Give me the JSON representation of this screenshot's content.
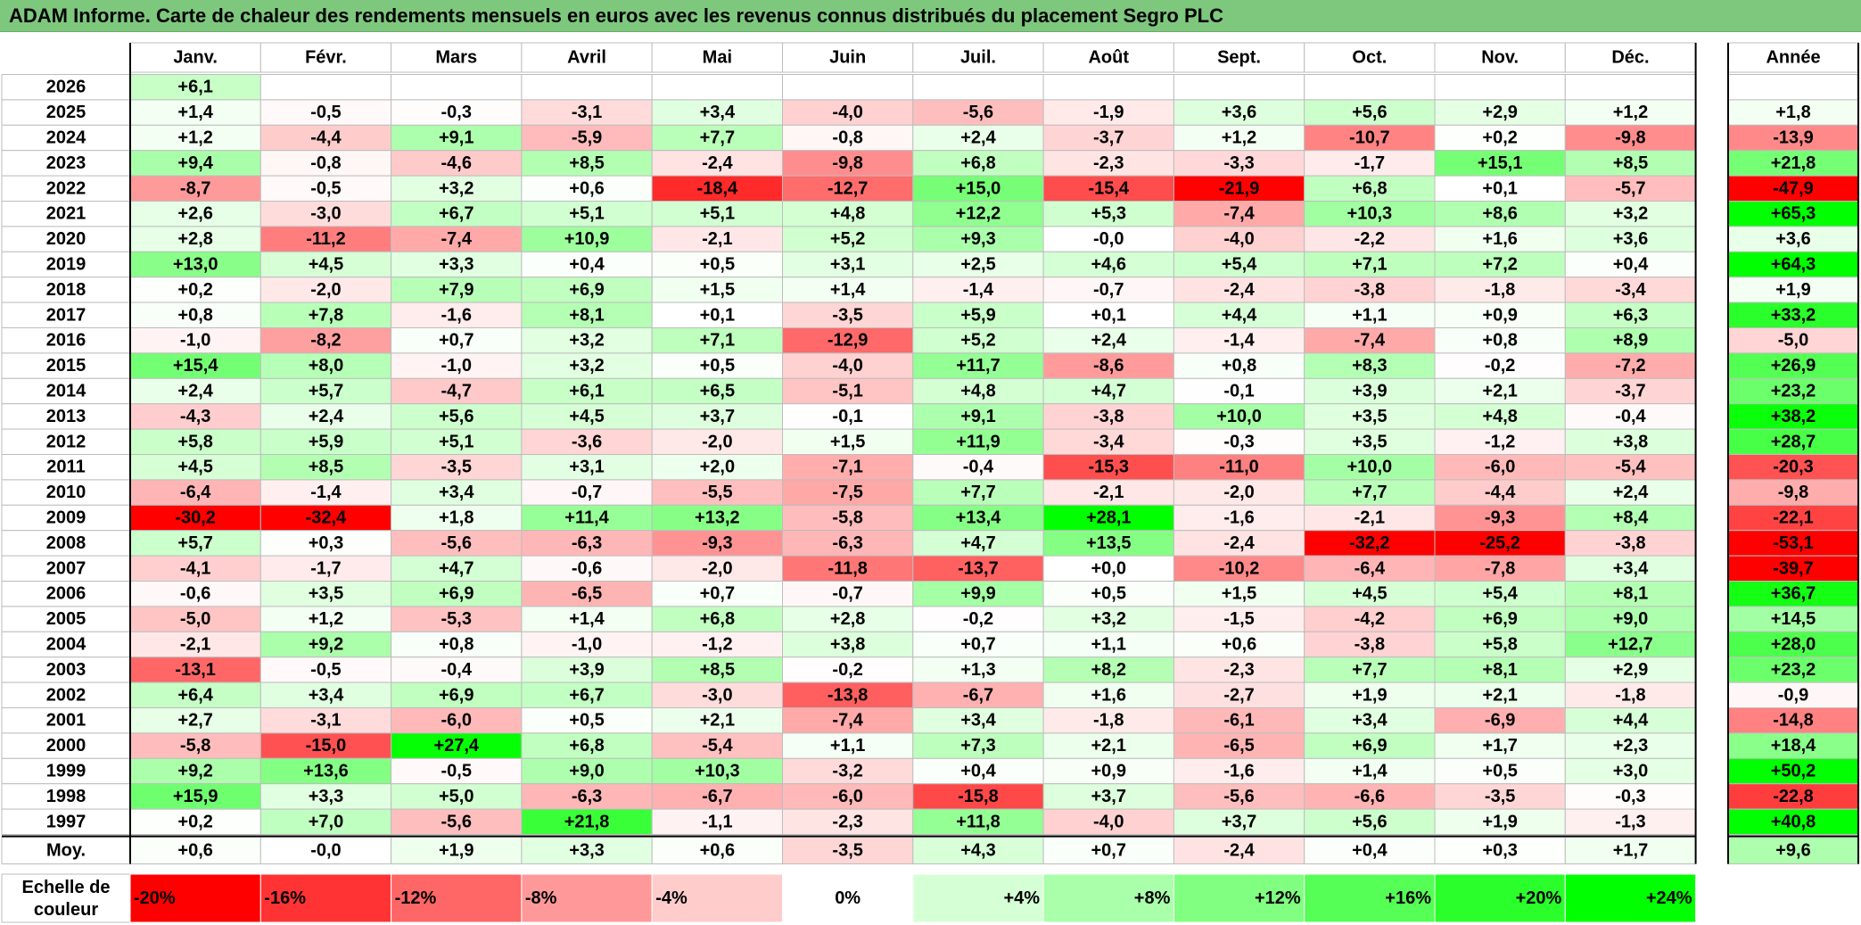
{
  "title": "ADAM Informe. Carte de chaleur des rendements mensuels en euros avec les revenus connus distribués du placement Segro PLC",
  "chart_data": {
    "type": "heatmap",
    "title": "ADAM Informe. Carte de chaleur des rendements mensuels en euros avec les revenus connus distribués du placement Segro PLC",
    "columns": [
      "Janv.",
      "Févr.",
      "Mars",
      "Avril",
      "Mai",
      "Juin",
      "Juil.",
      "Août",
      "Sept.",
      "Oct.",
      "Nov.",
      "Déc."
    ],
    "year_header": "Année",
    "rows": [
      {
        "year": "2026",
        "months": [
          "+6,1",
          "",
          "",
          "",
          "",
          "",
          "",
          "",
          "",
          "",
          "",
          ""
        ],
        "annual": ""
      },
      {
        "year": "2025",
        "months": [
          "+1,4",
          "-0,5",
          "-0,3",
          "-3,1",
          "+3,4",
          "-4,0",
          "-5,6",
          "-1,9",
          "+3,6",
          "+5,6",
          "+2,9",
          "+1,2"
        ],
        "annual": "+1,8"
      },
      {
        "year": "2024",
        "months": [
          "+1,2",
          "-4,4",
          "+9,1",
          "-5,9",
          "+7,7",
          "-0,8",
          "+2,4",
          "-3,7",
          "+1,2",
          "-10,7",
          "+0,2",
          "-9,8"
        ],
        "annual": "-13,9"
      },
      {
        "year": "2023",
        "months": [
          "+9,4",
          "-0,8",
          "-4,6",
          "+8,5",
          "-2,4",
          "-9,8",
          "+6,8",
          "-2,3",
          "-3,3",
          "-1,7",
          "+15,1",
          "+8,5"
        ],
        "annual": "+21,8"
      },
      {
        "year": "2022",
        "months": [
          "-8,7",
          "-0,5",
          "+3,2",
          "+0,6",
          "-18,4",
          "-12,7",
          "+15,0",
          "-15,4",
          "-21,9",
          "+6,8",
          "+0,1",
          "-5,7"
        ],
        "annual": "-47,9"
      },
      {
        "year": "2021",
        "months": [
          "+2,6",
          "-3,0",
          "+6,7",
          "+5,1",
          "+5,1",
          "+4,8",
          "+12,2",
          "+5,3",
          "-7,4",
          "+10,3",
          "+8,6",
          "+3,2"
        ],
        "annual": "+65,3"
      },
      {
        "year": "2020",
        "months": [
          "+2,8",
          "-11,2",
          "-7,4",
          "+10,9",
          "-2,1",
          "+5,2",
          "+9,3",
          "-0,0",
          "-4,0",
          "-2,2",
          "+1,6",
          "+3,6"
        ],
        "annual": "+3,6"
      },
      {
        "year": "2019",
        "months": [
          "+13,0",
          "+4,5",
          "+3,3",
          "+0,4",
          "+0,5",
          "+3,1",
          "+2,5",
          "+4,6",
          "+5,4",
          "+7,1",
          "+7,2",
          "+0,4"
        ],
        "annual": "+64,3"
      },
      {
        "year": "2018",
        "months": [
          "+0,2",
          "-2,0",
          "+7,9",
          "+6,9",
          "+1,5",
          "+1,4",
          "-1,4",
          "-0,7",
          "-2,4",
          "-3,8",
          "-1,8",
          "-3,4"
        ],
        "annual": "+1,9"
      },
      {
        "year": "2017",
        "months": [
          "+0,8",
          "+7,8",
          "-1,6",
          "+8,1",
          "+0,1",
          "-3,5",
          "+5,9",
          "+0,1",
          "+4,4",
          "+1,1",
          "+0,9",
          "+6,3"
        ],
        "annual": "+33,2"
      },
      {
        "year": "2016",
        "months": [
          "-1,0",
          "-8,2",
          "+0,7",
          "+3,2",
          "+7,1",
          "-12,9",
          "+5,2",
          "+2,4",
          "-1,4",
          "-7,4",
          "+0,8",
          "+8,9"
        ],
        "annual": "-5,0"
      },
      {
        "year": "2015",
        "months": [
          "+15,4",
          "+8,0",
          "-1,0",
          "+3,2",
          "+0,5",
          "-4,0",
          "+11,7",
          "-8,6",
          "+0,8",
          "+8,3",
          "-0,2",
          "-7,2"
        ],
        "annual": "+26,9"
      },
      {
        "year": "2014",
        "months": [
          "+2,4",
          "+5,7",
          "-4,7",
          "+6,1",
          "+6,5",
          "-5,1",
          "+4,8",
          "+4,7",
          "-0,1",
          "+3,9",
          "+2,1",
          "-3,7"
        ],
        "annual": "+23,2"
      },
      {
        "year": "2013",
        "months": [
          "-4,3",
          "+2,4",
          "+5,6",
          "+4,5",
          "+3,7",
          "-0,1",
          "+9,1",
          "-3,8",
          "+10,0",
          "+3,5",
          "+4,8",
          "-0,4"
        ],
        "annual": "+38,2"
      },
      {
        "year": "2012",
        "months": [
          "+5,8",
          "+5,9",
          "+5,1",
          "-3,6",
          "-2,0",
          "+1,5",
          "+11,9",
          "-3,4",
          "-0,3",
          "+3,5",
          "-1,2",
          "+3,8"
        ],
        "annual": "+28,7"
      },
      {
        "year": "2011",
        "months": [
          "+4,5",
          "+8,5",
          "-3,5",
          "+3,1",
          "+2,0",
          "-7,1",
          "-0,4",
          "-15,3",
          "-11,0",
          "+10,0",
          "-6,0",
          "-5,4"
        ],
        "annual": "-20,3"
      },
      {
        "year": "2010",
        "months": [
          "-6,4",
          "-1,4",
          "+3,4",
          "-0,7",
          "-5,5",
          "-7,5",
          "+7,7",
          "-2,1",
          "-2,0",
          "+7,7",
          "-4,4",
          "+2,4"
        ],
        "annual": "-9,8"
      },
      {
        "year": "2009",
        "months": [
          "-30,2",
          "-32,4",
          "+1,8",
          "+11,4",
          "+13,2",
          "-5,8",
          "+13,4",
          "+28,1",
          "-1,6",
          "-2,1",
          "-9,3",
          "+8,4"
        ],
        "annual": "-22,1"
      },
      {
        "year": "2008",
        "months": [
          "+5,7",
          "+0,3",
          "-5,6",
          "-6,3",
          "-9,3",
          "-6,3",
          "+4,7",
          "+13,5",
          "-2,4",
          "-32,2",
          "-25,2",
          "-3,8"
        ],
        "annual": "-53,1"
      },
      {
        "year": "2007",
        "months": [
          "-4,1",
          "-1,7",
          "+4,7",
          "-0,6",
          "-2,0",
          "-11,8",
          "-13,7",
          "+0,0",
          "-10,2",
          "-6,4",
          "-7,8",
          "+3,4"
        ],
        "annual": "-39,7"
      },
      {
        "year": "2006",
        "months": [
          "-0,6",
          "+3,5",
          "+6,9",
          "-6,5",
          "+0,7",
          "-0,7",
          "+9,9",
          "+0,5",
          "+1,5",
          "+4,5",
          "+5,4",
          "+8,1"
        ],
        "annual": "+36,7"
      },
      {
        "year": "2005",
        "months": [
          "-5,0",
          "+1,2",
          "-5,3",
          "+1,4",
          "+6,8",
          "+2,8",
          "-0,2",
          "+3,2",
          "-1,5",
          "-4,2",
          "+6,9",
          "+9,0"
        ],
        "annual": "+14,5"
      },
      {
        "year": "2004",
        "months": [
          "-2,1",
          "+9,2",
          "+0,8",
          "-1,0",
          "-1,2",
          "+3,8",
          "+0,7",
          "+1,1",
          "+0,6",
          "-3,8",
          "+5,8",
          "+12,7"
        ],
        "annual": "+28,0"
      },
      {
        "year": "2003",
        "months": [
          "-13,1",
          "-0,5",
          "-0,4",
          "+3,9",
          "+8,5",
          "-0,2",
          "+1,3",
          "+8,2",
          "-2,3",
          "+7,7",
          "+8,1",
          "+2,9"
        ],
        "annual": "+23,2"
      },
      {
        "year": "2002",
        "months": [
          "+6,4",
          "+3,4",
          "+6,9",
          "+6,7",
          "-3,0",
          "-13,8",
          "-6,7",
          "+1,6",
          "-2,7",
          "+1,9",
          "+2,1",
          "-1,8"
        ],
        "annual": "-0,9"
      },
      {
        "year": "2001",
        "months": [
          "+2,7",
          "-3,1",
          "-6,0",
          "+0,5",
          "+2,1",
          "-7,4",
          "+3,4",
          "-1,8",
          "-6,1",
          "+3,4",
          "-6,9",
          "+4,4"
        ],
        "annual": "-14,8"
      },
      {
        "year": "2000",
        "months": [
          "-5,8",
          "-15,0",
          "+27,4",
          "+6,8",
          "-5,4",
          "+1,1",
          "+7,3",
          "+2,1",
          "-6,5",
          "+6,9",
          "+1,7",
          "+2,3"
        ],
        "annual": "+18,4"
      },
      {
        "year": "1999",
        "months": [
          "+9,2",
          "+13,6",
          "-0,5",
          "+9,0",
          "+10,3",
          "-3,2",
          "+0,4",
          "+0,9",
          "-1,6",
          "+1,4",
          "+0,5",
          "+3,0"
        ],
        "annual": "+50,2"
      },
      {
        "year": "1998",
        "months": [
          "+15,9",
          "+3,3",
          "+5,0",
          "-6,3",
          "-6,7",
          "-6,0",
          "-15,8",
          "+3,7",
          "-5,6",
          "-6,6",
          "-3,5",
          "-0,3"
        ],
        "annual": "-22,8"
      },
      {
        "year": "1997",
        "months": [
          "+0,2",
          "+7,0",
          "-5,6",
          "+21,8",
          "-1,1",
          "-2,3",
          "+11,8",
          "-4,0",
          "+3,7",
          "+5,6",
          "+1,9",
          "-1,3"
        ],
        "annual": "+40,8"
      }
    ],
    "average": {
      "label": "Moy.",
      "months": [
        "+0,6",
        "-0,0",
        "+1,9",
        "+3,3",
        "+0,6",
        "-3,5",
        "+4,3",
        "+0,7",
        "-2,4",
        "+0,4",
        "+0,3",
        "+1,7"
      ],
      "annual": "+9,6"
    },
    "scale": {
      "label_line1": "Echelle de",
      "label_line2": "couleur",
      "steps": [
        "-20%",
        "-16%",
        "-12%",
        "-8%",
        "-4%",
        "0%",
        "+4%",
        "+8%",
        "+12%",
        "+16%",
        "+20%",
        "+24%"
      ]
    },
    "colors": {
      "title_bar": "#7ec87e",
      "max_negative": "#ff0000",
      "neutral": "#ffffff",
      "max_positive": "#00ff00"
    }
  }
}
